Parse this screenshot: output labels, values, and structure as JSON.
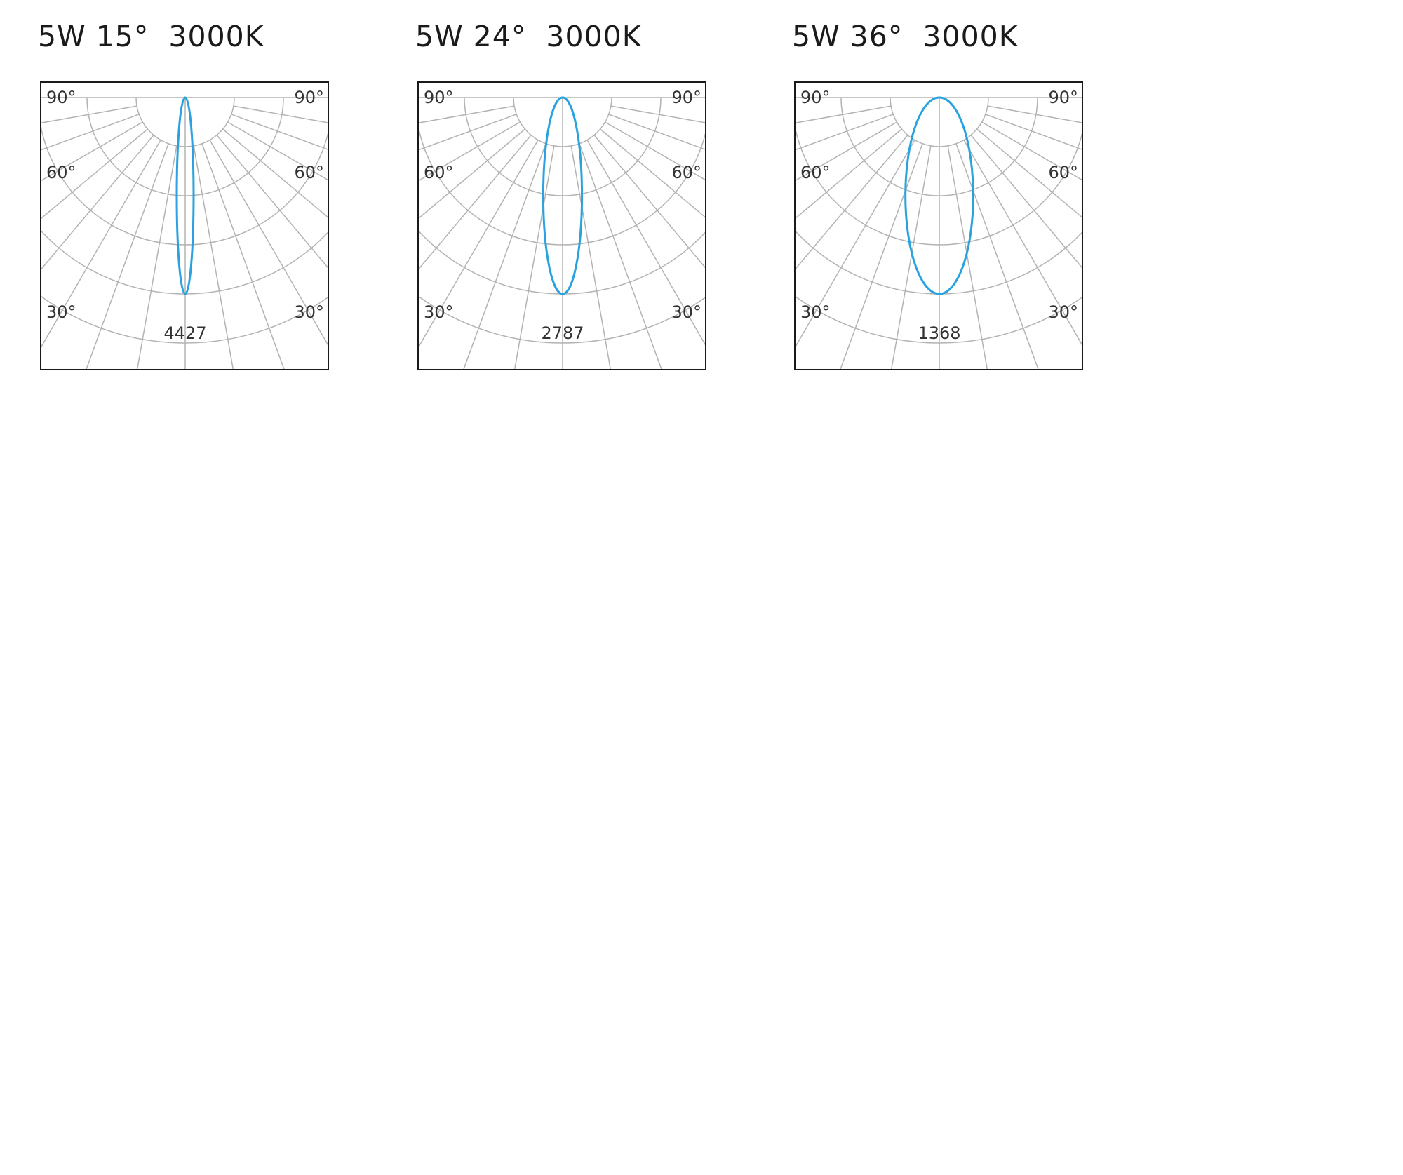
{
  "colors": {
    "curve": "#29a3df",
    "grid": "#b3b3b3",
    "frame": "#1a1a1a",
    "text": "#333333"
  },
  "chart_data": [
    {
      "type": "polar",
      "title": "5W 15°  3000K",
      "beam_angle_deg": 15,
      "peak_intensity": 4427,
      "angle_labels": [
        "90°",
        "60°",
        "30°"
      ],
      "peak_label": "4427"
    },
    {
      "type": "polar",
      "title": "5W 24°  3000K",
      "beam_angle_deg": 24,
      "peak_intensity": 2787,
      "angle_labels": [
        "90°",
        "60°",
        "30°"
      ],
      "peak_label": "2787"
    },
    {
      "type": "polar",
      "title": "5W 36°  3000K",
      "beam_angle_deg": 36,
      "peak_intensity": 1368,
      "angle_labels": [
        "90°",
        "60°",
        "30°"
      ],
      "peak_label": "1368"
    }
  ]
}
